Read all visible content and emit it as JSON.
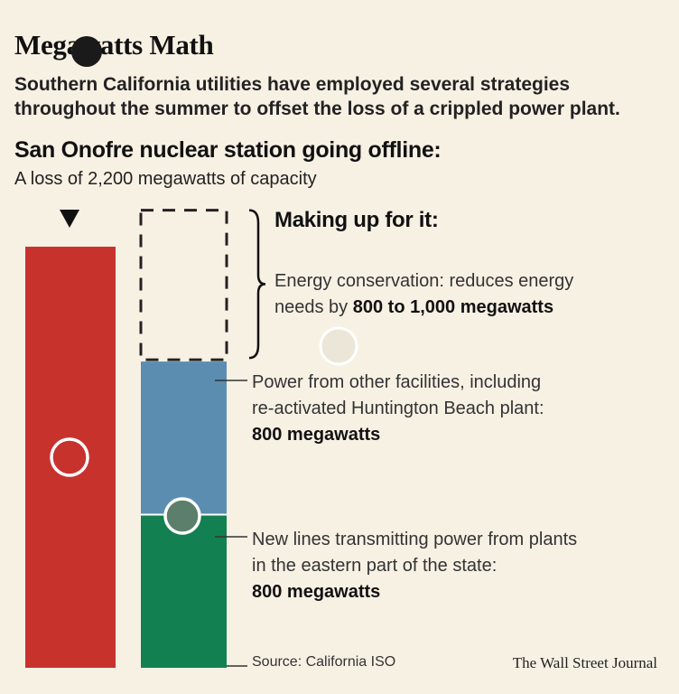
{
  "title": "Megawatts Math",
  "subtitle_lines": [
    "Southern California utilities have employed several strategies",
    "throughout the summer to offset the loss of a crippled power plant."
  ],
  "chart_data": {
    "type": "bar",
    "units": "megawatts",
    "loss": {
      "heading": "San Onofre nuclear station going offline:",
      "subheading": "A loss of 2,200 megawatts of capacity",
      "value": 2200,
      "color": "#c8322d"
    },
    "offset_heading": "Making up for it:",
    "offset_segments": [
      {
        "text_lines": [
          "New lines transmitting power from plants",
          "in the eastern part of the state:"
        ],
        "bold_value": "800 megawatts",
        "value": 800,
        "color": "#128050",
        "style": "solid"
      },
      {
        "text_lines": [
          "Power from other facilities, including",
          "re-activated Huntington Beach plant:"
        ],
        "bold_value": "800 megawatts",
        "value": 800,
        "color": "#5b8db0",
        "style": "solid"
      },
      {
        "text_lines": [
          "Energy conservation: reduces energy"
        ],
        "text_prefix": "needs by ",
        "bold_value": "800 to 1,000 megawatts",
        "value_range": [
          800,
          1000
        ],
        "value": 800,
        "color": "#222222",
        "style": "dashed"
      }
    ]
  },
  "source": "Source: California ISO",
  "credit": "The Wall Street Journal"
}
